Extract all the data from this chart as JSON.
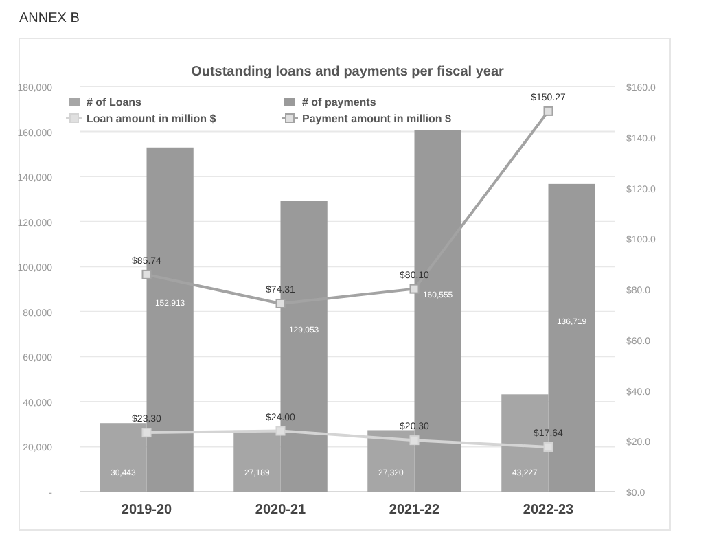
{
  "chart_data": {
    "type": "bar",
    "title": "Outstanding loans and payments per fiscal year",
    "annotations": [
      "ANNEX B"
    ],
    "categories": [
      "2019-20",
      "2020-21",
      "2021-22",
      "2022-23"
    ],
    "series": [
      {
        "name": "# of Loans",
        "color": "#a6a6a6",
        "values": [
          30443,
          27189,
          27320,
          43227
        ],
        "value_labels": [
          "30,443",
          "27,189",
          "27,320",
          "43,227"
        ]
      },
      {
        "name": "# of payments",
        "color": "#9a9a9a",
        "values": [
          152913,
          129053,
          160555,
          136719
        ],
        "value_labels": [
          "152,913",
          "129,053",
          "160,555",
          "136,719"
        ]
      },
      {
        "name": "Loan amount in million $",
        "type": "line",
        "axis": "y2",
        "color": "#d4d4d4",
        "values": [
          23.3,
          24.0,
          20.3,
          17.64
        ],
        "value_labels": [
          "$23.30",
          "$24.00",
          "$20.30",
          "$17.64"
        ]
      },
      {
        "name": "Payment amount in million $",
        "type": "line",
        "axis": "y2",
        "color": "#a3a3a3",
        "values": [
          85.74,
          74.31,
          80.1,
          150.27
        ],
        "value_labels": [
          "$85.74",
          "$74.31",
          "$80.10",
          "$150.27"
        ]
      }
    ],
    "ylim": [
      0,
      180000
    ],
    "yticks": [
      {
        "value": 0,
        "label": "-"
      },
      {
        "value": 20000,
        "label": "20,000"
      },
      {
        "value": 40000,
        "label": "40,000"
      },
      {
        "value": 60000,
        "label": "60,000"
      },
      {
        "value": 80000,
        "label": "80,000"
      },
      {
        "value": 100000,
        "label": "100,000"
      },
      {
        "value": 120000,
        "label": "120,000"
      },
      {
        "value": 140000,
        "label": "140,000"
      },
      {
        "value": 160000,
        "label": "160,000"
      },
      {
        "value": 180000,
        "label": "180,000"
      }
    ],
    "y2lim": [
      0,
      160
    ],
    "y2ticks": [
      {
        "value": 0,
        "label": "$0.0"
      },
      {
        "value": 20,
        "label": "$20.0"
      },
      {
        "value": 40,
        "label": "$40.0"
      },
      {
        "value": 60,
        "label": "$60.0"
      },
      {
        "value": 80,
        "label": "$80.0"
      },
      {
        "value": 100,
        "label": "$100.0"
      },
      {
        "value": 120,
        "label": "$120.0"
      },
      {
        "value": 140,
        "label": "$140.0"
      },
      {
        "value": 160,
        "label": "$160.0"
      }
    ],
    "grid": "y",
    "legend": "top left",
    "marker": "square",
    "line_style": "solid"
  }
}
